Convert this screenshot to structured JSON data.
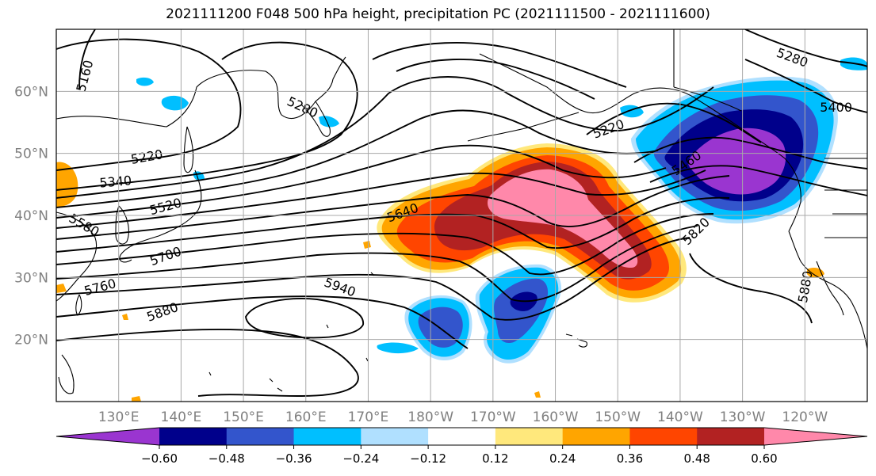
{
  "title": "2021111200 F048 500 hPa height, precipitation PC (2021111500 - 2021111600)",
  "map": {
    "lon_range": [
      120,
      250
    ],
    "lat_range": [
      10,
      70
    ],
    "lon_ticks": [
      {
        "lon": 130,
        "label": "130°E"
      },
      {
        "lon": 140,
        "label": "140°E"
      },
      {
        "lon": 150,
        "label": "150°E"
      },
      {
        "lon": 160,
        "label": "160°E"
      },
      {
        "lon": 170,
        "label": "170°E"
      },
      {
        "lon": 180,
        "label": "180°W"
      },
      {
        "lon": 190,
        "label": "170°W"
      },
      {
        "lon": 200,
        "label": "160°W"
      },
      {
        "lon": 210,
        "label": "150°W"
      },
      {
        "lon": 220,
        "label": "140°W"
      },
      {
        "lon": 230,
        "label": "130°W"
      },
      {
        "lon": 240,
        "label": "120°W"
      }
    ],
    "lat_ticks": [
      {
        "lat": 20,
        "label": "20°N"
      },
      {
        "lat": 30,
        "label": "30°N"
      },
      {
        "lat": 40,
        "label": "40°N"
      },
      {
        "lat": 50,
        "label": "50°N"
      },
      {
        "lat": 60,
        "label": "60°N"
      }
    ],
    "grid": true,
    "contour_labels": [
      {
        "text": "5160",
        "lon": 124.5,
        "lat": 62.5,
        "rot": -75
      },
      {
        "text": "5220",
        "lon": 134.5,
        "lat": 49.5,
        "rot": -10
      },
      {
        "text": "5340",
        "lon": 129.5,
        "lat": 45.5,
        "rot": -5
      },
      {
        "text": "5520",
        "lon": 137.5,
        "lat": 41.5,
        "rot": -15
      },
      {
        "text": "5580",
        "lon": 124.5,
        "lat": 38.5,
        "rot": 30
      },
      {
        "text": "5700",
        "lon": 137.5,
        "lat": 33.5,
        "rot": -20
      },
      {
        "text": "5760",
        "lon": 127,
        "lat": 28.5,
        "rot": -15
      },
      {
        "text": "5880",
        "lon": 137,
        "lat": 24.5,
        "rot": -20
      },
      {
        "text": "5940",
        "lon": 165.5,
        "lat": 28.5,
        "rot": 20
      },
      {
        "text": "5280",
        "lon": 159.5,
        "lat": 57.5,
        "rot": 25
      },
      {
        "text": "5640",
        "lon": 175.5,
        "lat": 40.5,
        "rot": -20
      },
      {
        "text": "5220",
        "lon": 208.5,
        "lat": 54,
        "rot": -20
      },
      {
        "text": "5460",
        "lon": 221,
        "lat": 48.5,
        "rot": -35
      },
      {
        "text": "5820",
        "lon": 222.5,
        "lat": 37.5,
        "rot": -45
      },
      {
        "text": "5280",
        "lon": 238,
        "lat": 65.5,
        "rot": 20
      },
      {
        "text": "5400",
        "lon": 245,
        "lat": 57.5,
        "rot": 0
      },
      {
        "text": "5880",
        "lon": 240,
        "lat": 28.5,
        "rot": -80
      }
    ]
  },
  "colorbar": {
    "colors": [
      "#9a35d0",
      "#00008b",
      "#3355cc",
      "#00bfff",
      "#b0e0ff",
      "#ffffff",
      "#ffe87c",
      "#ffa500",
      "#ff4500",
      "#b22222",
      "#ff88aa"
    ],
    "tick_labels": [
      "−0.60",
      "−0.48",
      "−0.36",
      "−0.24",
      "−0.12",
      "0.12",
      "0.24",
      "0.36",
      "0.48",
      "0.60"
    ]
  }
}
